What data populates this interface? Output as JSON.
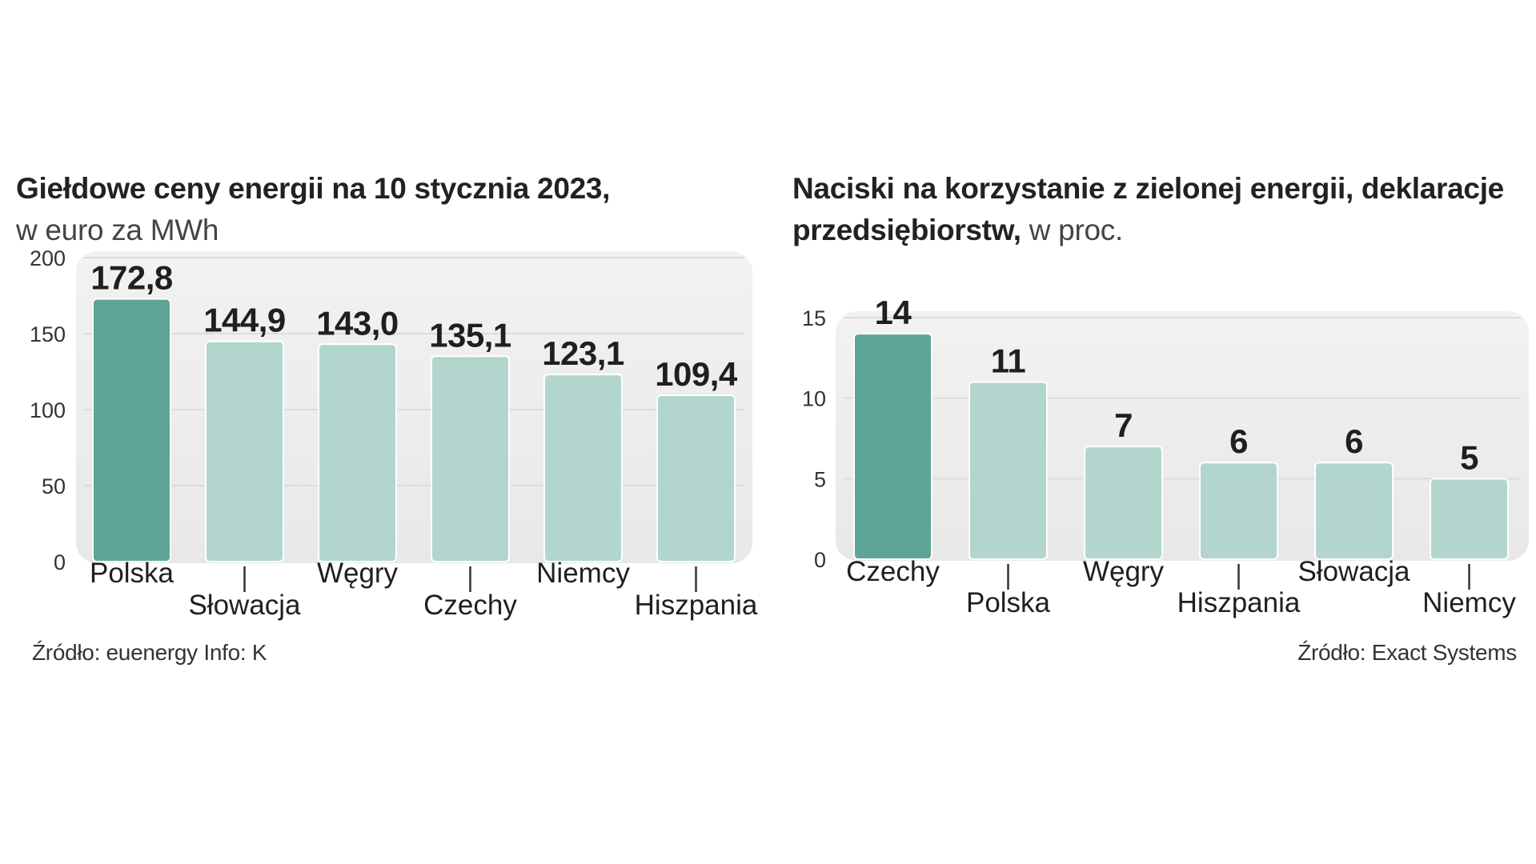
{
  "charts": [
    {
      "title_bold": "Giełdowe ceny energii na 10 stycznia 2023,",
      "title_light": "w euro za MWh",
      "source": "Źródło: euenergy  Info: K",
      "chart_data": {
        "type": "bar",
        "categories": [
          "Polska",
          "Słowacja",
          "Węgry",
          "Czechy",
          "Niemcy",
          "Hiszpania"
        ],
        "values": [
          172.8,
          144.9,
          143.0,
          135.1,
          123.1,
          109.4
        ],
        "value_labels": [
          "172,8",
          "144,9",
          "143,0",
          "135,1",
          "123,1",
          "109,4"
        ],
        "yticks": [
          0,
          50,
          100,
          150,
          200
        ],
        "ylim": [
          0,
          200
        ],
        "highlight_index": 0,
        "colors": {
          "highlight": "#5da697",
          "normal": "#b2d6cd",
          "panel": "#ececec"
        }
      }
    },
    {
      "title_bold": "Naciski na korzystanie z zielonej energii, deklaracje przedsiębiorstw,",
      "title_light": "w proc.",
      "source": "Źródło: Exact Systems",
      "chart_data": {
        "type": "bar",
        "categories": [
          "Czechy",
          "Polska",
          "Węgry",
          "Hiszpania",
          "Słowacja",
          "Niemcy"
        ],
        "values": [
          14,
          11,
          7,
          6,
          6,
          5
        ],
        "value_labels": [
          "14",
          "11",
          "7",
          "6",
          "6",
          "5"
        ],
        "yticks": [
          0,
          5,
          10,
          15
        ],
        "ylim": [
          0,
          15
        ],
        "highlight_index": 0,
        "colors": {
          "highlight": "#5da697",
          "normal": "#b2d6cd",
          "panel": "#ececec"
        }
      }
    }
  ]
}
